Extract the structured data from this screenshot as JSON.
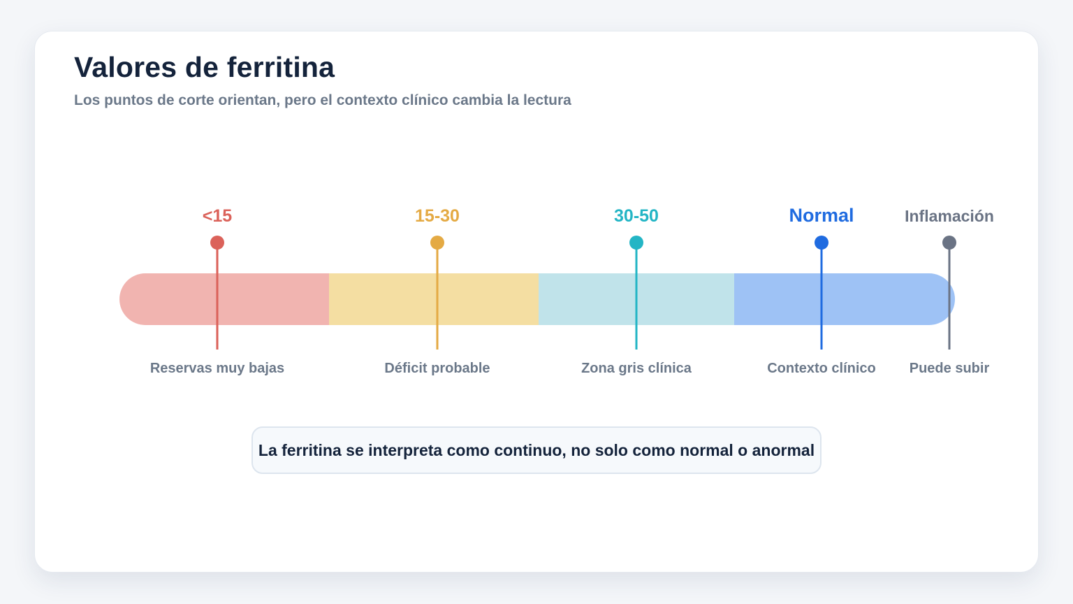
{
  "header": {
    "title": "Valores de ferritina",
    "subtitle": "Los puntos de corte orientan, pero el contexto clínico cambia la lectura"
  },
  "scale": {
    "segments": [
      {
        "name": "red",
        "color": "#f1b4b0"
      },
      {
        "name": "yellow",
        "color": "#f4dea2"
      },
      {
        "name": "teal",
        "color": "#c0e3ea"
      },
      {
        "name": "blue",
        "color": "#9ec2f5"
      }
    ],
    "markers": [
      {
        "label": "<15",
        "caption": "Reservas muy bajas",
        "color": "#db625a"
      },
      {
        "label": "15-30",
        "caption": "Déficit probable",
        "color": "#e4aa44"
      },
      {
        "label": "30-50",
        "caption": "Zona gris clínica",
        "color": "#23b5c5"
      },
      {
        "label": "Normal",
        "caption": "Contexto clínico",
        "color": "#1f6be0"
      },
      {
        "label": "Inflamación",
        "caption": "Puede subir",
        "color": "#6a7384"
      }
    ]
  },
  "callout": {
    "text": "La ferritina se interpreta como continuo, no solo como normal o anormal"
  }
}
